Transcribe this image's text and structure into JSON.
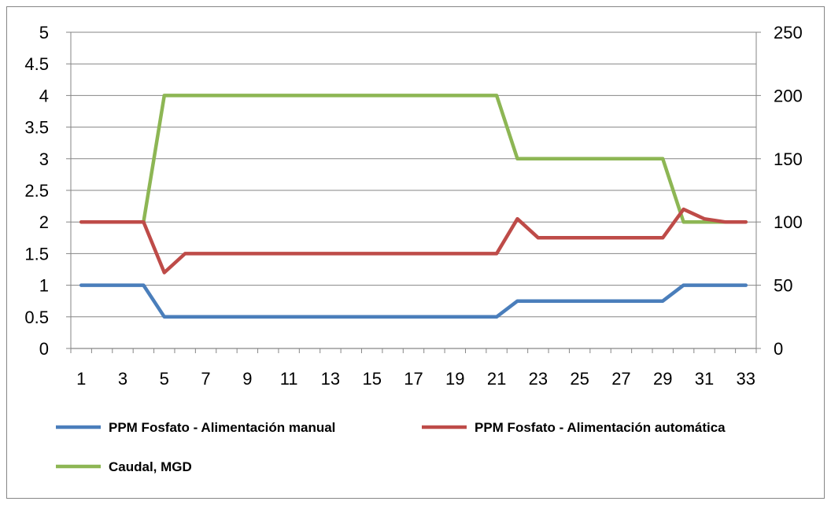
{
  "chart_data": {
    "type": "line",
    "x": [
      1,
      2,
      3,
      4,
      5,
      6,
      7,
      8,
      9,
      10,
      11,
      12,
      13,
      14,
      15,
      16,
      17,
      18,
      19,
      20,
      21,
      22,
      23,
      24,
      25,
      26,
      27,
      28,
      29,
      30,
      31,
      32,
      33
    ],
    "x_tick_labels": [
      "1",
      "3",
      "5",
      "7",
      "9",
      "11",
      "13",
      "15",
      "17",
      "19",
      "21",
      "23",
      "25",
      "27",
      "29",
      "31",
      "33"
    ],
    "y_left_tick_labels": [
      "0",
      "0.5",
      "1",
      "1.5",
      "2",
      "2.5",
      "3",
      "3.5",
      "4",
      "4.5",
      "5"
    ],
    "y_right_tick_labels": [
      "0",
      "50",
      "100",
      "150",
      "200",
      "250"
    ],
    "ylim_left": [
      0,
      5
    ],
    "ylim_right": [
      0,
      250
    ],
    "grid": "horizontal",
    "legend_position": "bottom",
    "series": [
      {
        "name": "PPM Fosfato - Alimentación manual",
        "axis": "left",
        "color": "#4a7ebb",
        "values": [
          1,
          1,
          1,
          1,
          0.5,
          0.5,
          0.5,
          0.5,
          0.5,
          0.5,
          0.5,
          0.5,
          0.5,
          0.5,
          0.5,
          0.5,
          0.5,
          0.5,
          0.5,
          0.5,
          0.5,
          0.75,
          0.75,
          0.75,
          0.75,
          0.75,
          0.75,
          0.75,
          0.75,
          1,
          1,
          1,
          1
        ]
      },
      {
        "name": "PPM Fosfato - Alimentación automática",
        "axis": "left",
        "color": "#be4b48",
        "values": [
          2,
          2,
          2,
          2,
          1.2,
          1.5,
          1.5,
          1.5,
          1.5,
          1.5,
          1.5,
          1.5,
          1.5,
          1.5,
          1.5,
          1.5,
          1.5,
          1.5,
          1.5,
          1.5,
          1.5,
          2.05,
          1.75,
          1.75,
          1.75,
          1.75,
          1.75,
          1.75,
          1.75,
          2.2,
          2.05,
          2,
          2
        ]
      },
      {
        "name": "Caudal, MGD",
        "axis": "right",
        "color": "#8db654",
        "values": [
          100,
          100,
          100,
          100,
          200,
          200,
          200,
          200,
          200,
          200,
          200,
          200,
          200,
          200,
          200,
          200,
          200,
          200,
          200,
          200,
          200,
          150,
          150,
          150,
          150,
          150,
          150,
          150,
          150,
          100,
          100,
          100,
          100
        ]
      }
    ]
  }
}
